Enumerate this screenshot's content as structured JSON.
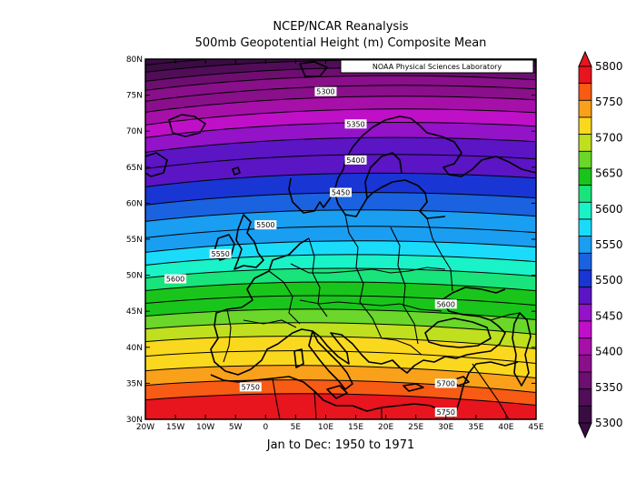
{
  "header": {
    "title": "NCEP/NCAR Reanalysis",
    "subtitle": "500mb Geopotential Height (m) Composite Mean",
    "period": "Jan to Dec: 1950 to 1971",
    "credit": "NOAA Physical Sciences Laboratory"
  },
  "chart_data": {
    "type": "contour",
    "variable": "500mb Geopotential Height",
    "units": "m",
    "lon_range": [
      -20,
      45
    ],
    "lat_range": [
      30,
      80
    ],
    "lon_ticks": [
      "20W",
      "15W",
      "10W",
      "5W",
      "0",
      "5E",
      "10E",
      "15E",
      "20E",
      "25E",
      "30E",
      "35E",
      "40E",
      "45E"
    ],
    "lat_ticks": [
      "30N",
      "35N",
      "40N",
      "45N",
      "50N",
      "55N",
      "60N",
      "65N",
      "70N",
      "75N",
      "80N"
    ],
    "contour_labels": [
      {
        "text": "5300",
        "lon": 10,
        "lat": 75.5
      },
      {
        "text": "5350",
        "lon": 15,
        "lat": 71
      },
      {
        "text": "5400",
        "lon": 15,
        "lat": 66
      },
      {
        "text": "5450",
        "lon": 12.5,
        "lat": 61.5
      },
      {
        "text": "5500",
        "lon": 0,
        "lat": 57
      },
      {
        "text": "5550",
        "lon": -7.5,
        "lat": 53
      },
      {
        "text": "5600",
        "lon": -15,
        "lat": 49.5
      },
      {
        "text": "5600",
        "lon": 30,
        "lat": 46
      },
      {
        "text": "5750",
        "lon": -2.5,
        "lat": 34.5
      },
      {
        "text": "5700",
        "lon": 30,
        "lat": 35
      },
      {
        "text": "5750",
        "lon": 30,
        "lat": 31
      }
    ],
    "colorbar": {
      "labels": [
        "5800",
        "5750",
        "5700",
        "5650",
        "5600",
        "5550",
        "5500",
        "5450",
        "5400",
        "5350",
        "5300"
      ],
      "colors": [
        "#e8141e",
        "#f75b14",
        "#f9a11a",
        "#fad81e",
        "#bfdf1f",
        "#6ad72a",
        "#1ac51b",
        "#19e47b",
        "#1af2c8",
        "#1adcfa",
        "#1a9ef2",
        "#1a62e0",
        "#1935d4",
        "#5b15c4",
        "#9412c7",
        "#bf10c8",
        "#a610a9",
        "#8a0f8a",
        "#6e0e71",
        "#510d58",
        "#3a0c43"
      ]
    }
  }
}
